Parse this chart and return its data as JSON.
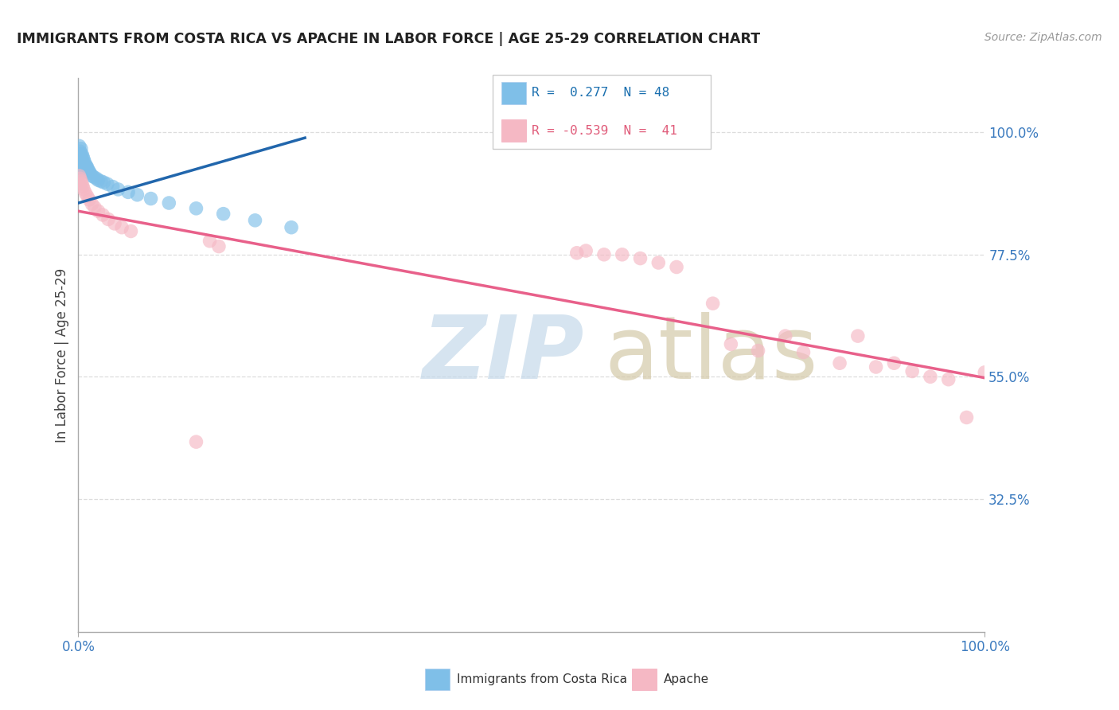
{
  "title": "IMMIGRANTS FROM COSTA RICA VS APACHE IN LABOR FORCE | AGE 25-29 CORRELATION CHART",
  "source": "Source: ZipAtlas.com",
  "ylabel": "In Labor Force | Age 25-29",
  "right_yticks": [
    "100.0%",
    "77.5%",
    "55.0%",
    "32.5%"
  ],
  "right_ytick_vals": [
    1.0,
    0.775,
    0.55,
    0.325
  ],
  "blue_color": "#7fbfe8",
  "pink_color": "#f5b8c4",
  "blue_line_color": "#2166ac",
  "pink_line_color": "#e8608a",
  "xlim": [
    0.0,
    1.0
  ],
  "ylim": [
    0.08,
    1.1
  ],
  "blue_scatter_x": [
    0.001,
    0.001,
    0.001,
    0.001,
    0.001,
    0.002,
    0.002,
    0.002,
    0.002,
    0.003,
    0.003,
    0.003,
    0.003,
    0.003,
    0.004,
    0.004,
    0.004,
    0.004,
    0.005,
    0.005,
    0.005,
    0.006,
    0.006,
    0.007,
    0.007,
    0.008,
    0.009,
    0.01,
    0.011,
    0.012,
    0.013,
    0.015,
    0.017,
    0.02,
    0.022,
    0.025,
    0.028,
    0.032,
    0.038,
    0.044,
    0.055,
    0.065,
    0.08,
    0.1,
    0.13,
    0.16,
    0.195,
    0.235
  ],
  "blue_scatter_y": [
    0.975,
    0.96,
    0.95,
    0.94,
    0.935,
    0.965,
    0.955,
    0.945,
    0.93,
    0.97,
    0.958,
    0.948,
    0.938,
    0.925,
    0.96,
    0.95,
    0.94,
    0.928,
    0.955,
    0.945,
    0.935,
    0.95,
    0.94,
    0.945,
    0.932,
    0.94,
    0.938,
    0.935,
    0.93,
    0.928,
    0.925,
    0.92,
    0.918,
    0.915,
    0.912,
    0.91,
    0.908,
    0.905,
    0.9,
    0.895,
    0.89,
    0.885,
    0.878,
    0.87,
    0.86,
    0.85,
    0.838,
    0.825
  ],
  "pink_scatter_x": [
    0.001,
    0.002,
    0.003,
    0.004,
    0.005,
    0.006,
    0.008,
    0.01,
    0.012,
    0.015,
    0.018,
    0.022,
    0.027,
    0.033,
    0.04,
    0.048,
    0.058,
    0.13,
    0.145,
    0.155,
    0.55,
    0.56,
    0.58,
    0.6,
    0.62,
    0.64,
    0.66,
    0.7,
    0.72,
    0.75,
    0.78,
    0.8,
    0.84,
    0.86,
    0.88,
    0.9,
    0.92,
    0.94,
    0.96,
    0.98,
    1.0
  ],
  "pink_scatter_y": [
    0.92,
    0.915,
    0.91,
    0.905,
    0.9,
    0.895,
    0.888,
    0.882,
    0.876,
    0.868,
    0.862,
    0.855,
    0.848,
    0.84,
    0.832,
    0.825,
    0.818,
    0.43,
    0.8,
    0.79,
    0.778,
    0.782,
    0.775,
    0.775,
    0.768,
    0.76,
    0.752,
    0.685,
    0.61,
    0.598,
    0.625,
    0.595,
    0.575,
    0.625,
    0.568,
    0.575,
    0.56,
    0.55,
    0.545,
    0.475,
    0.558
  ],
  "background_color": "#ffffff",
  "grid_color": "#dddddd",
  "blue_line_x": [
    0.0,
    0.25
  ],
  "blue_line_y": [
    0.87,
    0.99
  ],
  "pink_line_x": [
    0.0,
    1.0
  ],
  "pink_line_y": [
    0.855,
    0.548
  ]
}
